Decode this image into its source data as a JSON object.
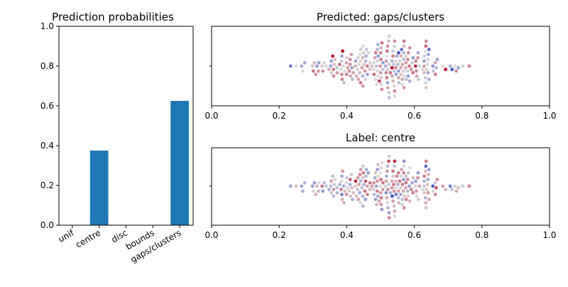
{
  "chart_data": [
    {
      "type": "bar",
      "title": "Prediction probabilities",
      "categories": [
        "unif",
        "centre",
        "disc",
        "bounds",
        "gaps/clusters"
      ],
      "values": [
        0.0,
        0.375,
        0.0,
        0.0,
        0.625
      ],
      "ylim": [
        0,
        1
      ],
      "yticks": [
        "0.0",
        "0.2",
        "0.4",
        "0.6",
        "0.8",
        "1.0"
      ],
      "color": "#1f77b4"
    },
    {
      "type": "scatter",
      "title": "Predicted: gaps/clusters",
      "xlim": [
        0,
        1
      ],
      "xticks": [
        "0.0",
        "0.2",
        "0.4",
        "0.6",
        "0.8",
        "1.0"
      ],
      "colormap": "coolwarm"
    },
    {
      "type": "scatter",
      "title": "Label: centre",
      "xlim": [
        0,
        1
      ],
      "xticks": [
        "0.0",
        "0.2",
        "0.4",
        "0.6",
        "0.8",
        "1.0"
      ],
      "colormap": "coolwarm"
    }
  ]
}
